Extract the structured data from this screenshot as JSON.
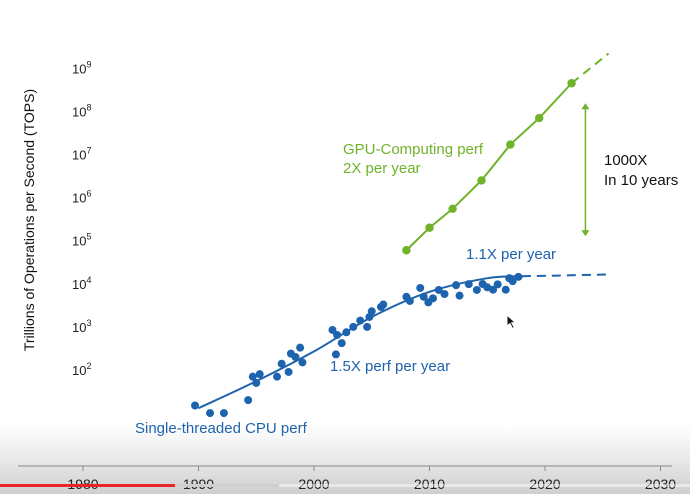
{
  "chart_data": {
    "type": "scatter",
    "title": "",
    "xlabel": "",
    "ylabel": "Trillions of Operations per Second (TOPS)",
    "x_range": [
      1980,
      2030
    ],
    "x_ticks": [
      "1980",
      "1990",
      "2000",
      "2010",
      "2020",
      "2030"
    ],
    "y_scale": "log",
    "y_range_exponent": [
      1.3,
      9.4
    ],
    "y_ticks": [
      {
        "base": "10",
        "exp": "2",
        "value": 100
      },
      {
        "base": "10",
        "exp": "3",
        "value": 1000
      },
      {
        "base": "10",
        "exp": "4",
        "value": 10000
      },
      {
        "base": "10",
        "exp": "5",
        "value": 100000
      },
      {
        "base": "10",
        "exp": "6",
        "value": 1000000
      },
      {
        "base": "10",
        "exp": "7",
        "value": 10000000
      },
      {
        "base": "10",
        "exp": "8",
        "value": 100000000
      },
      {
        "base": "10",
        "exp": "9",
        "value": 1000000000
      }
    ],
    "grid": false,
    "series": [
      {
        "name": "Single-threaded CPU perf",
        "color": "#1e63ad",
        "points": [
          [
            1989.7,
            15
          ],
          [
            1991.0,
            10
          ],
          [
            1992.2,
            10
          ],
          [
            1994.3,
            20
          ],
          [
            1994.7,
            70
          ],
          [
            1995.0,
            50
          ],
          [
            1995.3,
            80
          ],
          [
            1996.8,
            70
          ],
          [
            1997.2,
            140
          ],
          [
            1997.8,
            90
          ],
          [
            1998.0,
            240
          ],
          [
            1998.4,
            200
          ],
          [
            1998.8,
            330
          ],
          [
            1999.0,
            150
          ],
          [
            2001.6,
            850
          ],
          [
            2001.9,
            230
          ],
          [
            2002.0,
            650
          ],
          [
            2002.4,
            420
          ],
          [
            2002.8,
            750
          ],
          [
            2003.4,
            1000
          ],
          [
            2004.0,
            1400
          ],
          [
            2004.6,
            1000
          ],
          [
            2004.8,
            1700
          ],
          [
            2005.0,
            2300
          ],
          [
            2005.8,
            2900
          ],
          [
            2006.0,
            3300
          ],
          [
            2008.0,
            5000
          ],
          [
            2008.3,
            4000
          ],
          [
            2009.2,
            8000
          ],
          [
            2009.5,
            5000
          ],
          [
            2009.9,
            3700
          ],
          [
            2010.3,
            4600
          ],
          [
            2010.8,
            7200
          ],
          [
            2011.3,
            5800
          ],
          [
            2012.3,
            9300
          ],
          [
            2012.6,
            5300
          ],
          [
            2013.4,
            9800
          ],
          [
            2014.1,
            7200
          ],
          [
            2014.6,
            9900
          ],
          [
            2015.0,
            8300
          ],
          [
            2015.5,
            7300
          ],
          [
            2015.9,
            9700
          ],
          [
            2016.6,
            7300
          ],
          [
            2016.9,
            13500
          ],
          [
            2017.2,
            11500
          ],
          [
            2017.7,
            14500
          ]
        ]
      },
      {
        "name": "GPU-Computing perf",
        "color": "#6fb32a",
        "points": [
          [
            2008,
            60000
          ],
          [
            2010,
            200000
          ],
          [
            2012,
            550000
          ],
          [
            2014.5,
            2500000
          ],
          [
            2017,
            17000000
          ],
          [
            2019.5,
            70000000
          ],
          [
            2022.3,
            450000000
          ]
        ]
      }
    ],
    "trend_lines": [
      {
        "series": "Single-threaded CPU perf",
        "kind": "fit",
        "style": "solid",
        "points": [
          [
            1990,
            13
          ],
          [
            1995,
            55
          ],
          [
            2000,
            270
          ],
          [
            2005,
            1700
          ],
          [
            2010,
            6500
          ],
          [
            2015,
            13500
          ],
          [
            2018,
            15000
          ]
        ]
      },
      {
        "series": "Single-threaded CPU perf",
        "kind": "projection",
        "style": "dashed",
        "points": [
          [
            2018,
            15000
          ],
          [
            2021,
            15500
          ],
          [
            2025.5,
            16500
          ]
        ]
      },
      {
        "series": "GPU-Computing perf",
        "kind": "projection",
        "style": "dashed",
        "points": [
          [
            2022.3,
            450000000
          ],
          [
            2025.5,
            2200000000
          ]
        ]
      }
    ],
    "annotations": [
      {
        "key": "gpu_rate",
        "line1": "GPU-Computing perf",
        "line2": "2X per year",
        "color": "#6fb32a"
      },
      {
        "key": "gap",
        "line1": "1000X",
        "line2": "In 10 years",
        "color": "#111111"
      },
      {
        "key": "cpu_recent",
        "text": "1.1X per year",
        "color": "#1e63ad"
      },
      {
        "key": "cpu_rate",
        "text": "1.5X perf per year",
        "color": "#1e63ad"
      },
      {
        "key": "cpu_label",
        "text": "Single-threaded CPU perf",
        "color": "#1e63ad"
      }
    ],
    "gap_arrow": {
      "x": 2023.5,
      "from": 15000,
      "to": 450000000,
      "color": "#6fb32a"
    }
  },
  "player": {
    "played_fraction": 0.253,
    "buffered_fraction": 0.404,
    "bar_color": "#e8262a"
  }
}
